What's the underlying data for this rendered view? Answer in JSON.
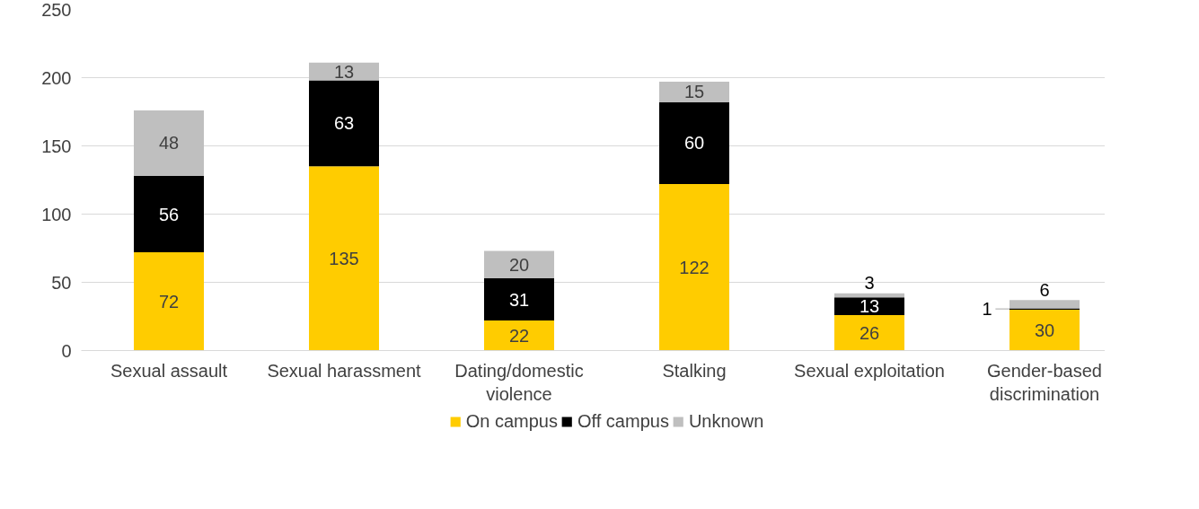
{
  "chart_data": {
    "type": "bar",
    "stacked": true,
    "categories": [
      "Sexual assault",
      "Sexual harassment",
      "Dating/domestic violence",
      "Stalking",
      "Sexual exploitation",
      "Gender-based discrimination"
    ],
    "series": [
      {
        "name": "On campus",
        "color": "#ffcc00",
        "values": [
          72,
          135,
          22,
          122,
          26,
          30
        ]
      },
      {
        "name": "Off campus",
        "color": "#000000",
        "values": [
          56,
          63,
          31,
          60,
          13,
          1
        ]
      },
      {
        "name": "Unknown",
        "color": "#bfbfbf",
        "values": [
          48,
          13,
          20,
          15,
          3,
          6
        ]
      }
    ],
    "ylim": [
      0,
      250
    ],
    "yticks": [
      0,
      50,
      100,
      150,
      200,
      250
    ],
    "grid": "y",
    "legend": "bottom",
    "data_labels": true
  }
}
